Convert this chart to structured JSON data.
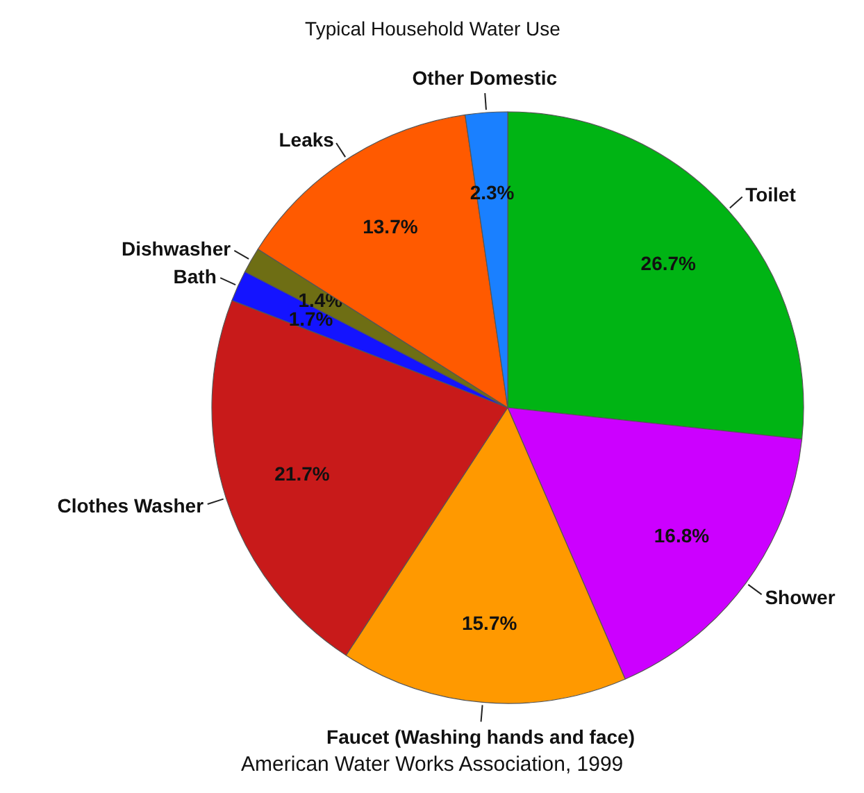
{
  "chart_data": {
    "type": "pie",
    "title": "Typical Household Water Use",
    "categories": [
      "Toilet",
      "Shower",
      "Faucet (Washing hands and face)",
      "Clothes Washer",
      "Bath",
      "Dishwasher",
      "Leaks",
      "Other Domestic"
    ],
    "values": [
      26.7,
      16.8,
      15.7,
      21.7,
      1.7,
      1.4,
      13.7,
      2.3
    ],
    "colors": [
      "#00b414",
      "#cc00ff",
      "#ff9900",
      "#c81a1a",
      "#1414ff",
      "#6e6e14",
      "#ff5a00",
      "#1a80ff"
    ],
    "value_labels": [
      "26.7%",
      "16.8%",
      "15.7%",
      "21.7%",
      "1.7%",
      "1.4%",
      "13.7%",
      "2.3%"
    ],
    "annotations": [
      "American Water Works Association, 1999"
    ]
  }
}
